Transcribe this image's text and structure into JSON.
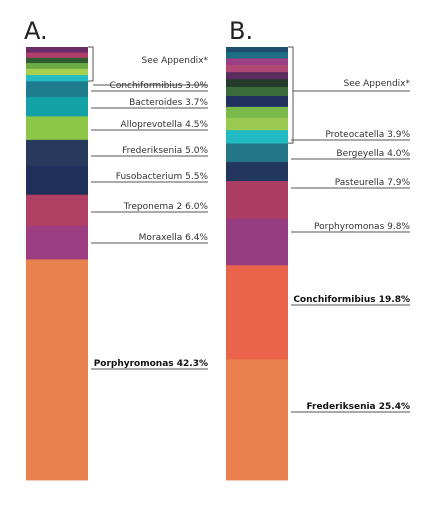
{
  "chart_data": [
    {
      "type": "stacked-bar",
      "panel_label": "A.",
      "appendix_label": "See Appendix*",
      "segments": [
        {
          "name": "Porphyromonas",
          "value": 42.3,
          "label": "Porphyromonas 42.3%",
          "color": "#ea824f",
          "bold": true
        },
        {
          "name": "Moraxella",
          "value": 6.4,
          "label": "Moraxella 6.4%",
          "color": "#9d3d82"
        },
        {
          "name": "Treponema 2",
          "value": 6.0,
          "label": "Treponema 2 6.0%",
          "color": "#b04064"
        },
        {
          "name": "Fusobacterium",
          "value": 5.5,
          "label": "Fusobacterium 5.5%",
          "color": "#1e2f5c"
        },
        {
          "name": "Frederiksenia",
          "value": 5.0,
          "label": "Frederiksenia 5.0%",
          "color": "#273a5e"
        },
        {
          "name": "Alloprevotella",
          "value": 4.5,
          "label": "Alloprevotella 4.5%",
          "color": "#8dc748"
        },
        {
          "name": "Bacteroides",
          "value": 3.7,
          "label": "Bacteroides 3.7%",
          "color": "#13a3a7"
        },
        {
          "name": "Conchiformibius",
          "value": 3.0,
          "label": "Conchiformibius 3.0%",
          "color": "#1f7c8e"
        },
        {
          "name": "other-1",
          "value": 1.2,
          "color": "#25bdc4",
          "appendix": true
        },
        {
          "name": "other-2",
          "value": 1.2,
          "color": "#a7d050",
          "appendix": true
        },
        {
          "name": "other-3",
          "value": 1.1,
          "color": "#6aab45",
          "appendix": true
        },
        {
          "name": "other-4",
          "value": 1.0,
          "color": "#2f5b33",
          "appendix": true
        },
        {
          "name": "other-5",
          "value": 1.0,
          "color": "#b03e6a",
          "appendix": true
        },
        {
          "name": "other-6",
          "value": 1.0,
          "color": "#6b2d68",
          "appendix": true
        }
      ]
    },
    {
      "type": "stacked-bar",
      "panel_label": "B.",
      "appendix_label": "See Appendix*",
      "segments": [
        {
          "name": "Frederiksenia",
          "value": 25.4,
          "label": "Frederiksenia 25.4%",
          "color": "#ea824f",
          "bold": true
        },
        {
          "name": "Conchiformibius",
          "value": 19.8,
          "label": "Conchiformibius 19.8%",
          "color": "#ea644b",
          "bold": true
        },
        {
          "name": "Porphyromonas",
          "value": 9.8,
          "label": "Porphyromonas 9.8%",
          "color": "#963c80"
        },
        {
          "name": "Pasteurella",
          "value": 7.9,
          "label": "Pasteurella 7.9%",
          "color": "#ac3e64"
        },
        {
          "name": "Bergeyella",
          "value": 4.0,
          "label": "Bergeyella 4.0%",
          "color": "#23365d"
        },
        {
          "name": "Proteocatella",
          "value": 3.9,
          "label": "Proteocatella 3.9%",
          "color": "#237686"
        },
        {
          "name": "other-1",
          "value": 2.8,
          "color": "#21b9c2",
          "appendix": true
        },
        {
          "name": "other-2",
          "value": 2.6,
          "color": "#9acb50",
          "appendix": true
        },
        {
          "name": "other-3",
          "value": 2.3,
          "color": "#79b94a",
          "appendix": true
        },
        {
          "name": "other-4",
          "value": 2.3,
          "color": "#22305f",
          "appendix": true
        },
        {
          "name": "other-5",
          "value": 1.9,
          "color": "#3b6b3b",
          "appendix": true
        },
        {
          "name": "other-6",
          "value": 1.6,
          "color": "#243b2b",
          "appendix": true
        },
        {
          "name": "other-7",
          "value": 1.5,
          "color": "#5a2b5e",
          "appendix": true
        },
        {
          "name": "other-8",
          "value": 1.5,
          "color": "#b04a74",
          "appendix": true
        },
        {
          "name": "other-9",
          "value": 1.4,
          "color": "#9b3f86",
          "appendix": true
        },
        {
          "name": "other-10",
          "value": 1.3,
          "color": "#1b6e84",
          "appendix": true
        },
        {
          "name": "other-11",
          "value": 1.0,
          "color": "#1f4d6e",
          "appendix": true
        }
      ]
    }
  ]
}
